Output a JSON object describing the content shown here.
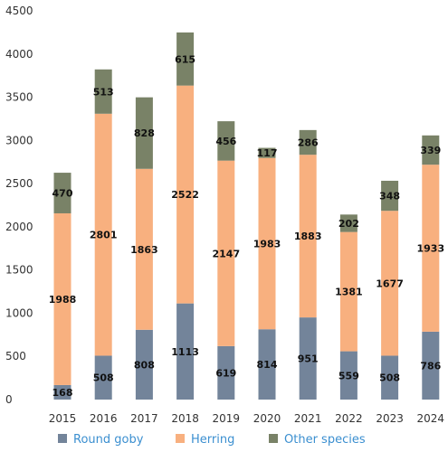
{
  "chart_data": {
    "type": "bar",
    "stacked": true,
    "categories": [
      "2015",
      "2016",
      "2017",
      "2018",
      "2019",
      "2020",
      "2021",
      "2022",
      "2023",
      "2024"
    ],
    "series": [
      {
        "name": "Round goby",
        "color": "#73849a",
        "values": [
          168,
          508,
          808,
          1113,
          619,
          814,
          951,
          559,
          508,
          786
        ]
      },
      {
        "name": "Herring",
        "color": "#f8b07f",
        "values": [
          1988,
          2801,
          1863,
          2522,
          2147,
          1983,
          1883,
          1381,
          1677,
          1933
        ]
      },
      {
        "name": "Other species",
        "color": "#798267",
        "values": [
          470,
          513,
          828,
          615,
          456,
          117,
          286,
          202,
          348,
          339
        ]
      }
    ],
    "ylim": [
      0,
      4500
    ],
    "yticks": [
      0,
      500,
      1000,
      1500,
      2000,
      2500,
      3000,
      3500,
      4000,
      4500
    ],
    "grid": false,
    "legend_position": "bottom"
  }
}
